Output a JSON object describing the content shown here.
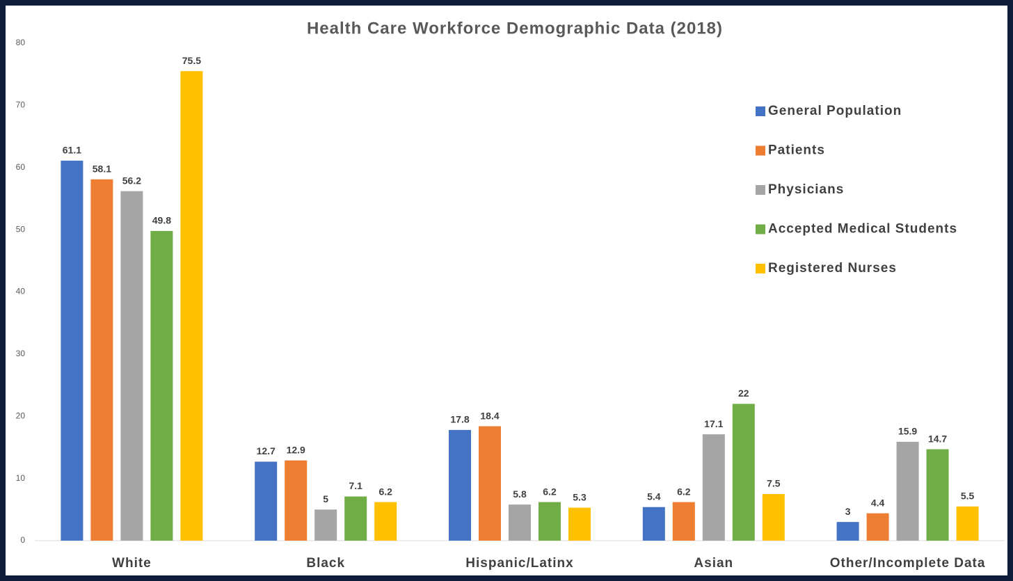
{
  "chart_data": {
    "type": "bar",
    "title": "Health Care Workforce Demographic Data (2018)",
    "categories": [
      "White",
      "Black",
      "Hispanic/Latinx",
      "Asian",
      "Other/Incomplete Data"
    ],
    "series": [
      {
        "name": "General Population",
        "color": "#4472c4",
        "values": [
          61.1,
          12.7,
          17.8,
          5.4,
          3
        ]
      },
      {
        "name": "Patients",
        "color": "#ed7d31",
        "values": [
          58.1,
          12.9,
          18.4,
          6.2,
          4.4
        ]
      },
      {
        "name": "Physicians",
        "color": "#a5a5a5",
        "values": [
          56.2,
          5,
          5.8,
          17.1,
          15.9
        ]
      },
      {
        "name": "Accepted Medical Students",
        "color": "#70ad47",
        "values": [
          49.8,
          7.1,
          6.2,
          22,
          14.7
        ]
      },
      {
        "name": "Registered Nurses",
        "color": "#ffc000",
        "values": [
          75.5,
          6.2,
          5.3,
          7.5,
          5.5
        ]
      }
    ],
    "ylim": [
      0,
      80
    ],
    "yticks": [
      0,
      10,
      20,
      30,
      40,
      50,
      60,
      70,
      80
    ],
    "grid": false,
    "legend": "right"
  }
}
